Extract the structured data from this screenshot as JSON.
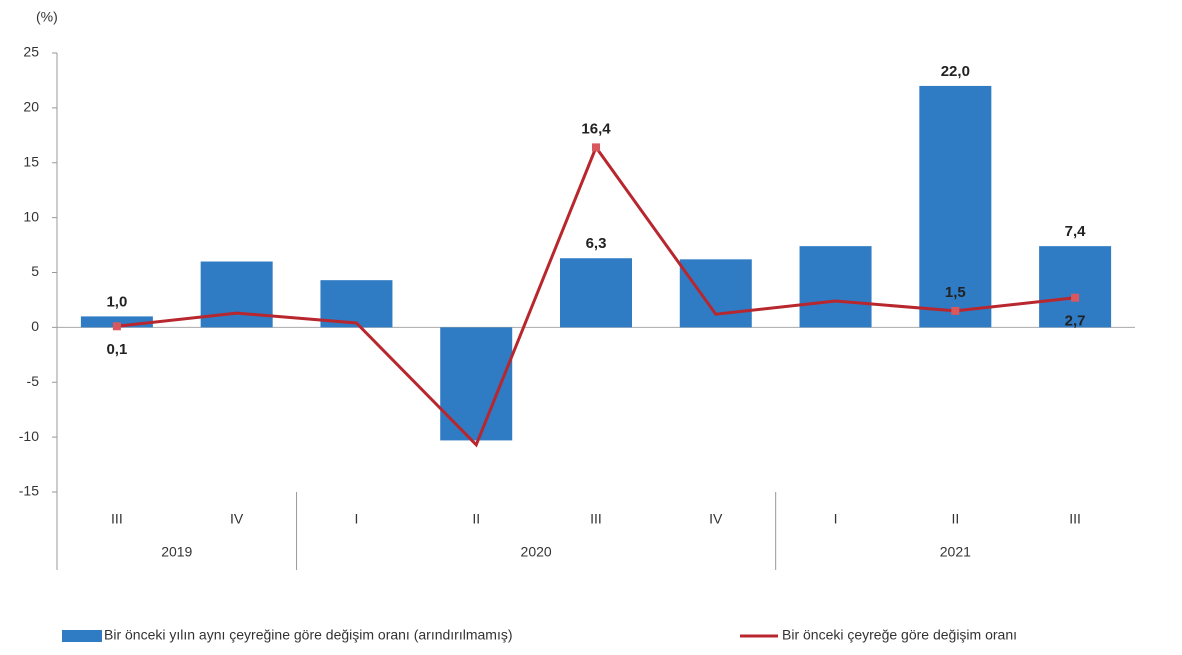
{
  "chart_data": {
    "type": "bar",
    "y_label": "(%)",
    "categories": [
      "III",
      "IV",
      "I",
      "II",
      "III",
      "IV",
      "I",
      "II",
      "III"
    ],
    "groups": [
      {
        "name": "2019",
        "count": 2
      },
      {
        "name": "2020",
        "count": 4
      },
      {
        "name": "2021",
        "count": 3
      }
    ],
    "ylim": [
      -15,
      25
    ],
    "yticks": [
      -15,
      -10,
      -5,
      0,
      5,
      10,
      15,
      20,
      25
    ],
    "grid": false,
    "legend": "bottom",
    "series": [
      {
        "name": "Bir önceki yılın aynı çeyreğine göre değişim oranı (arındırılmamış)",
        "type": "bar",
        "color": "#2f7bc4",
        "values": [
          1.0,
          6.0,
          4.3,
          -10.3,
          6.3,
          6.2,
          7.4,
          22.0,
          7.4
        ],
        "value_labels": [
          "1,0",
          null,
          null,
          null,
          "6,3",
          null,
          null,
          "22,0",
          "7,4"
        ]
      },
      {
        "name": "Bir önceki çeyreğe göre değişim oranı",
        "type": "line",
        "color": "#b8262e",
        "values": [
          0.1,
          1.3,
          0.4,
          -10.7,
          16.4,
          1.2,
          2.4,
          1.5,
          2.7
        ],
        "value_labels": [
          "0,1",
          null,
          null,
          null,
          "16,4",
          null,
          null,
          "1,5",
          "2,7"
        ]
      }
    ]
  }
}
